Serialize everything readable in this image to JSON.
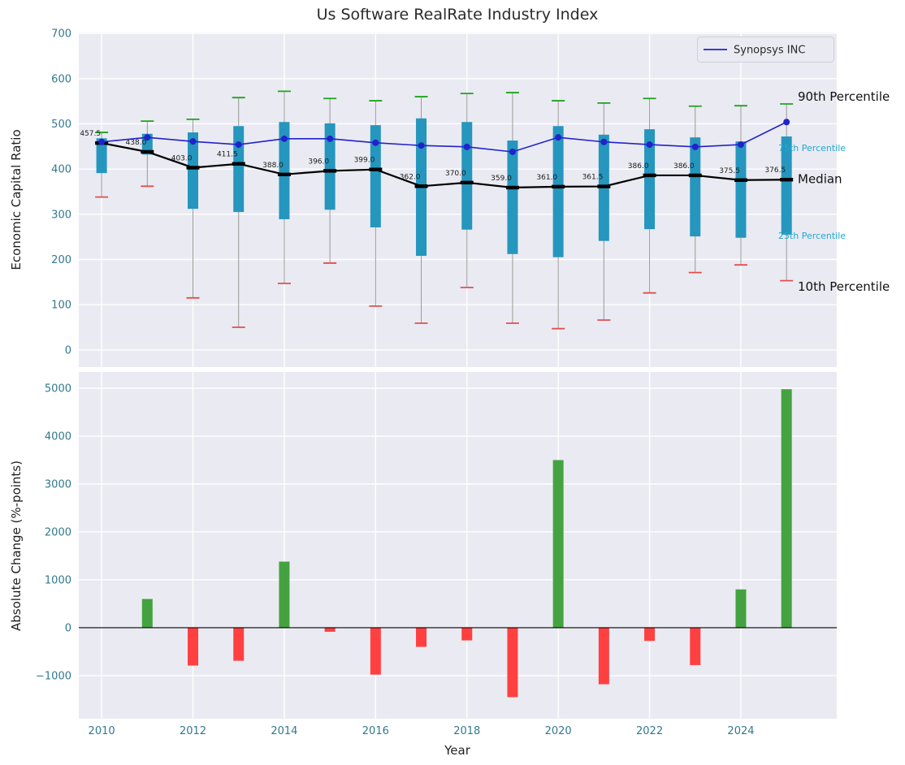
{
  "figure": {
    "title": "Us Software RealRate Industry Index"
  },
  "legend": {
    "label": "Synopsys INC",
    "position": "upper right"
  },
  "axes_style": {
    "background": "#eaeaf2",
    "grid_color": "#ffffff",
    "tick_color": "#31798f"
  },
  "chart_data": [
    {
      "type": "boxplot+line",
      "title": "Us Software RealRate Industry Index",
      "ylabel": "Economic Capital Ratio",
      "ylim": [
        -38,
        702
      ],
      "yticks": [
        0,
        100,
        200,
        300,
        400,
        500,
        600,
        700
      ],
      "xlim": [
        2009.5,
        2026.1
      ],
      "grid": true,
      "x": [
        2010,
        2011,
        2012,
        2013,
        2014,
        2015,
        2016,
        2017,
        2018,
        2019,
        2020,
        2021,
        2022,
        2023,
        2024,
        2025
      ],
      "series": [
        {
          "name": "Median",
          "type": "line",
          "marker": "thick-dash",
          "color": "#000000",
          "data_labels": true,
          "values": [
            457.5,
            438.0,
            403.0,
            411.5,
            388.0,
            396.0,
            399.0,
            362.0,
            370.0,
            359.0,
            361.0,
            361.5,
            386.0,
            386.0,
            375.5,
            376.5
          ]
        },
        {
          "name": "Synopsys INC",
          "type": "line",
          "marker": "circle",
          "color": "#2222cc",
          "data_labels": false,
          "values": [
            460,
            470,
            461,
            454,
            467,
            467,
            458,
            452,
            449,
            438,
            470,
            460,
            454,
            449,
            454,
            504
          ]
        }
      ],
      "boxes": {
        "fill_color": "#2596be",
        "whisker_color": "#999999",
        "p90_cap_color": "#1ea41e",
        "p10_cap_color": "#e14f4f",
        "p75": [
          468,
          478,
          481,
          495,
          504,
          501,
          497,
          512,
          504,
          463,
          495,
          476,
          488,
          470,
          461,
          472
        ],
        "p25": [
          391,
          432,
          312,
          305,
          289,
          310,
          271,
          208,
          266,
          212,
          205,
          241,
          267,
          251,
          248,
          255
        ],
        "p90": [
          481,
          506,
          510,
          558,
          572,
          556,
          551,
          560,
          567,
          569,
          551,
          546,
          556,
          539,
          540,
          544
        ],
        "p10": [
          338,
          362,
          115,
          50,
          147,
          192,
          97,
          59,
          138,
          59,
          47,
          66,
          126,
          171,
          188,
          153
        ]
      },
      "annotations": [
        {
          "label": "90th Percentile",
          "value": 560,
          "color": "#111111",
          "size": 15
        },
        {
          "label": "75th Percentile",
          "value": 447,
          "color": "#25a8ce",
          "size": 11
        },
        {
          "label": "Median",
          "value": 378,
          "color": "#111111",
          "size": 15
        },
        {
          "label": "25th Percentile",
          "value": 253,
          "color": "#25a8ce",
          "size": 11
        },
        {
          "label": "10th Percentile",
          "value": 140,
          "color": "#111111",
          "size": 15
        }
      ]
    },
    {
      "type": "bar",
      "ylabel": "Absolute Change (%-points)",
      "xlabel": "Year",
      "ylim": [
        -1900,
        5340
      ],
      "yticks": [
        -1000,
        0,
        1000,
        2000,
        3000,
        4000,
        5000
      ],
      "xticks": [
        2010,
        2012,
        2014,
        2016,
        2018,
        2020,
        2022,
        2024
      ],
      "grid": true,
      "x": [
        2010,
        2011,
        2012,
        2013,
        2014,
        2015,
        2016,
        2017,
        2018,
        2019,
        2020,
        2021,
        2022,
        2023,
        2024,
        2025
      ],
      "values": [
        0,
        600,
        -790,
        -690,
        1380,
        -85,
        -980,
        -400,
        -265,
        -1450,
        3500,
        -1180,
        -275,
        -780,
        800,
        4980
      ],
      "positive_color": "#44a340",
      "negative_color": "#ff4040",
      "zero_line_color": "#000000"
    }
  ]
}
